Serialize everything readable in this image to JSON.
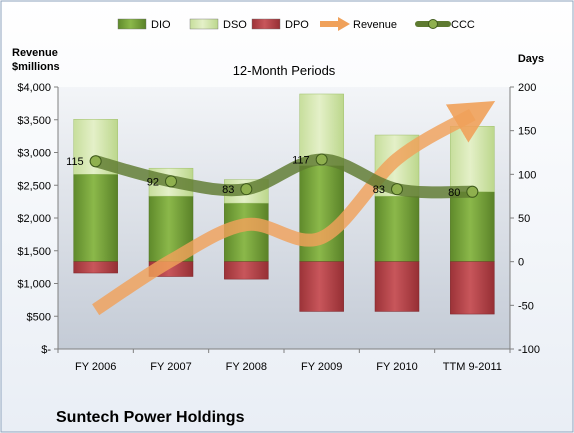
{
  "chart_data": {
    "type": "bar",
    "title": "12-Month Periods",
    "footer_title": "Suntech Power Holdings",
    "categories": [
      "FY 2006",
      "FY 2007",
      "FY 2008",
      "FY 2009",
      "FY 2010",
      "TTM 9-2011"
    ],
    "left_axis": {
      "label_line1": "Revenue",
      "label_line2": "$millions",
      "ylim": [
        0,
        4000
      ],
      "ticks": [
        0,
        500,
        1000,
        1500,
        2000,
        2500,
        3000,
        3500,
        4000
      ],
      "tick_labels": [
        "$-",
        "$500",
        "$1,000",
        "$1,500",
        "$2,000",
        "$2,500",
        "$3,000",
        "$3,500",
        "$4,000"
      ]
    },
    "right_axis": {
      "label": "Days",
      "ylim": [
        -100,
        200
      ],
      "ticks": [
        -100,
        -50,
        0,
        50,
        100,
        150,
        200
      ],
      "tick_labels": [
        "-100",
        "-50",
        "0",
        "50",
        "100",
        "150",
        "200"
      ]
    },
    "series": [
      {
        "name": "DIO",
        "kind": "stacked-bar",
        "axis": "right",
        "values": [
          100,
          75,
          67,
          110,
          75,
          80
        ],
        "color": "#7aa33a"
      },
      {
        "name": "DSO",
        "kind": "stacked-bar",
        "axis": "right",
        "values": [
          63,
          32,
          27,
          82,
          70,
          75
        ],
        "color": "#d6e9b0"
      },
      {
        "name": "DPO",
        "kind": "negative-bar",
        "axis": "right",
        "values": [
          -13,
          -17,
          -20,
          -57,
          -57,
          -60
        ],
        "color": "#b8454b"
      },
      {
        "name": "Revenue",
        "kind": "arrow-line",
        "axis": "left",
        "values": [
          600,
          1350,
          1900,
          1700,
          2900,
          3580
        ],
        "color": "#f0a15a"
      },
      {
        "name": "CCC",
        "kind": "smooth-line",
        "axis": "right",
        "values": [
          115,
          92,
          83,
          117,
          83,
          80
        ],
        "color": "#5e7a30"
      }
    ],
    "data_labels": {
      "series": "CCC",
      "values": [
        "115",
        "92",
        "83",
        "117",
        "83",
        "80"
      ]
    },
    "legend": {
      "position": "top",
      "items": [
        "DIO",
        "DSO",
        "DPO",
        "Revenue",
        "CCC"
      ]
    },
    "grid": false
  }
}
